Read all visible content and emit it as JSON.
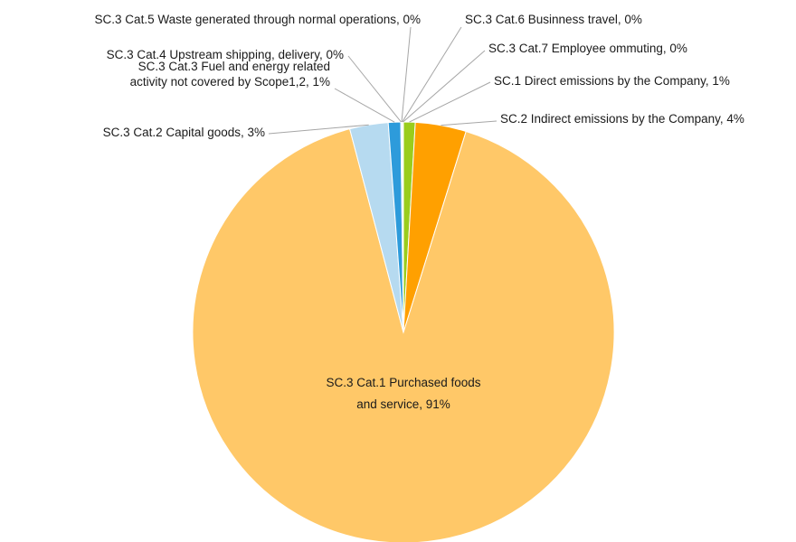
{
  "chart_data": {
    "type": "pie",
    "title": "",
    "start_angle_deg": 0,
    "direction": "clockwise",
    "slices": [
      {
        "label": "SC.1 Direct emissions by the Company, 1%",
        "value": 0.9,
        "color": "#9ACD1C"
      },
      {
        "label": "SC.2 Indirect emissions by the Company, 4%",
        "value": 3.9,
        "color": "#FFA000"
      },
      {
        "label_lines": [
          "SC.3 Cat.1 Purchased foods",
          "and service, 91%"
        ],
        "value": 91.1,
        "color": "#FFC868"
      },
      {
        "label": "SC.3 Cat.2 Capital goods, 3%",
        "value": 2.95,
        "color": "#B6DAF0"
      },
      {
        "label_lines": [
          "SC.3 Cat.3 Fuel and energy related",
          "activity not covered by Scope1,2, 1%"
        ],
        "value": 0.95,
        "color": "#2D9BDB"
      },
      {
        "label": "SC.3 Cat.4 Upstream shipping, delivery, 0%",
        "value": 0.04,
        "color": "#7FB3D5"
      },
      {
        "label": "SC.3 Cat.5 Waste generated through normal operations, 0%",
        "value": 0.04,
        "color": "#A9CCE3"
      },
      {
        "label": "SC.3 Cat.6 Businness travel, 0%",
        "value": 0.06,
        "color": "#F4B183"
      },
      {
        "label": "SC.3 Cat.7 Employee ommuting, 0%",
        "value": 0.06,
        "color": "#C5E0B4"
      }
    ]
  }
}
